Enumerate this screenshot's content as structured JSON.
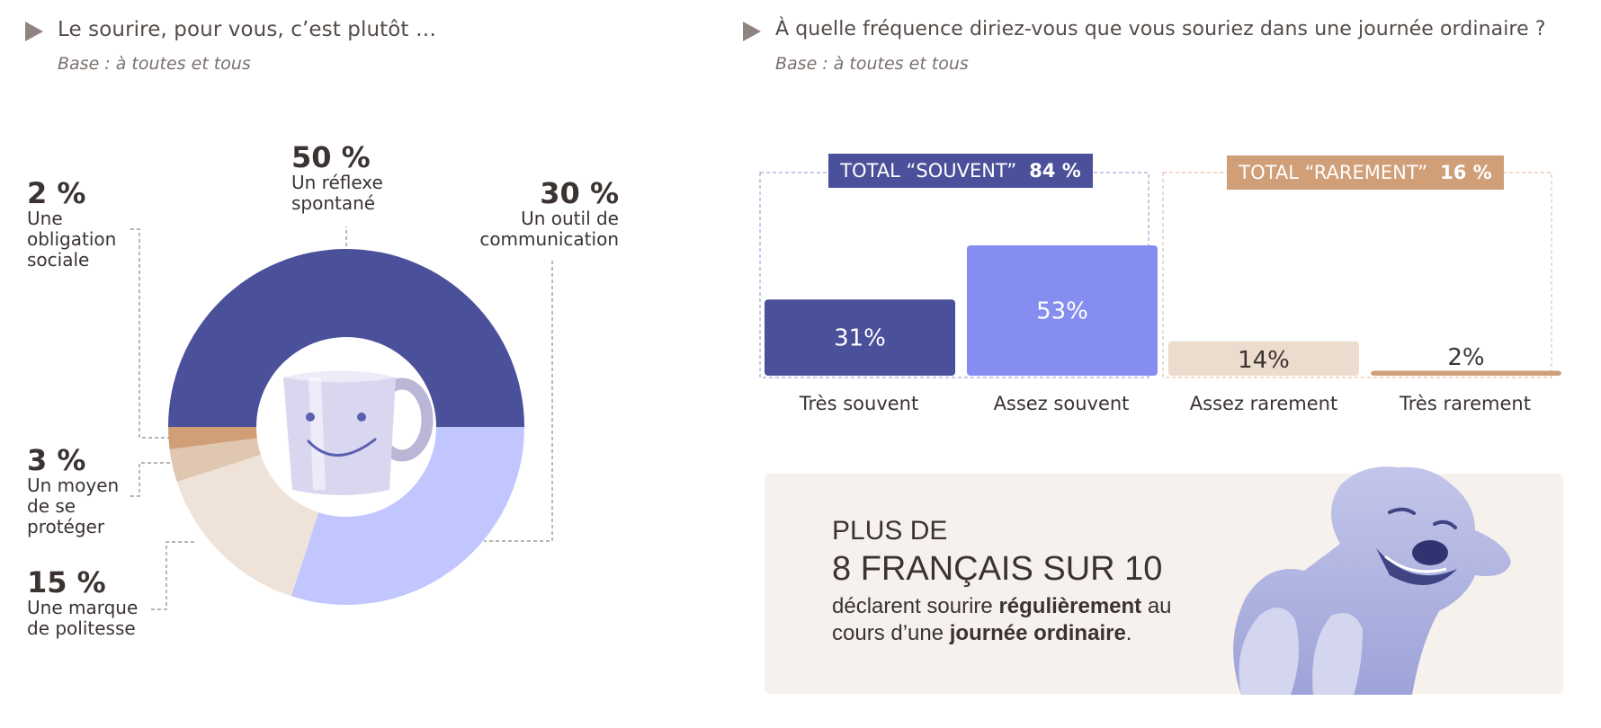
{
  "left": {
    "title": "Le sourire, pour vous, c’est plutôt …",
    "base": "Base : à toutes et tous"
  },
  "right": {
    "title": "À quelle fréquence diriez-vous que vous souriez dans une journée ordinaire ?",
    "base": "Base : à toutes et tous",
    "total_souvent": {
      "label": "TOTAL “SOUVENT”",
      "value": "84 %"
    },
    "total_rarement": {
      "label": "TOTAL “RAREMENT”",
      "value": "16 %"
    }
  },
  "donut_labels": [
    {
      "pct": "50 %",
      "text": "Un réflexe spontané"
    },
    {
      "pct": "30 %",
      "text": "Un outil de communication"
    },
    {
      "pct": "15 %",
      "text": "Une marque de politesse"
    },
    {
      "pct": "3 %",
      "text": "Un moyen de se protéger"
    },
    {
      "pct": "2 %",
      "text": "Une obligation sociale"
    }
  ],
  "chart_data": [
    {
      "type": "pie",
      "title": "Le sourire, pour vous, c’est plutôt …",
      "categories": [
        "Un réflexe spontané",
        "Un outil de communication",
        "Une marque de politesse",
        "Un moyen de se protéger",
        "Une obligation sociale"
      ],
      "values": [
        50,
        30,
        15,
        3,
        2
      ],
      "colors": [
        "#4a5099",
        "#c2c6ff",
        "#efe3d9",
        "#e0c7b1",
        "#d09e77"
      ]
    },
    {
      "type": "bar",
      "title": "À quelle fréquence diriez-vous que vous souriez dans une journée ordinaire ?",
      "categories": [
        "Très souvent",
        "Assez souvent",
        "Assez rarement",
        "Très rarement"
      ],
      "values": [
        31,
        53,
        14,
        2
      ],
      "value_labels": [
        "31%",
        "53%",
        "14%",
        "2%"
      ],
      "colors": [
        "#4a5099",
        "#858ef0",
        "#ecdccd",
        "#d09e77"
      ],
      "groups": [
        {
          "name": "TOTAL “SOUVENT”",
          "value": 84,
          "categories": [
            "Très souvent",
            "Assez souvent"
          ]
        },
        {
          "name": "TOTAL “RAREMENT”",
          "value": 16,
          "categories": [
            "Assez rarement",
            "Très rarement"
          ]
        }
      ]
    }
  ],
  "colors": {
    "navy": "#4a5099",
    "periwinkle": "#858ef0",
    "lavender": "#c2c6ff",
    "tan": "#d09e77",
    "cream": "#f6f1ec"
  },
  "callout": {
    "line1": "PLUS DE",
    "line2": "8 FRANÇAIS SUR 10",
    "body_1": "déclarent sourire ",
    "body_b1": "régulièrement",
    "body_2": " au cours d’une ",
    "body_b2": "journée ordinaire",
    "body_3": "."
  },
  "icons": [
    "play-arrow-icon",
    "smiley-mug-icon",
    "smiling-dog-icon"
  ]
}
